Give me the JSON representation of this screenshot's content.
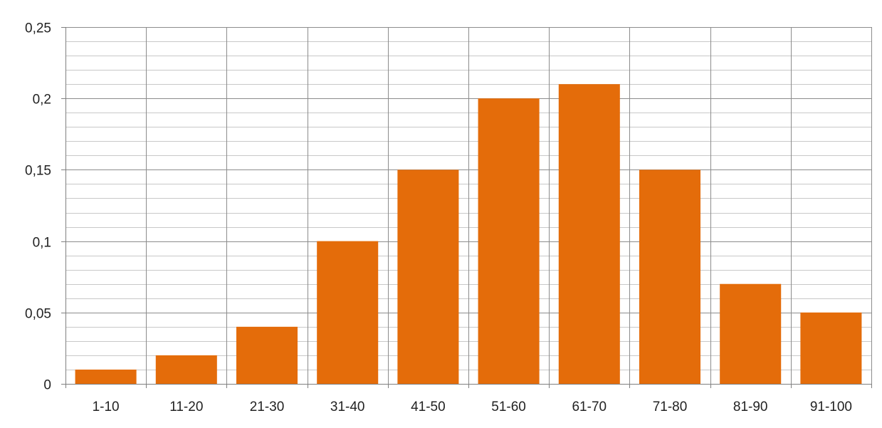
{
  "chart_data": {
    "type": "bar",
    "categories": [
      "1-10",
      "11-20",
      "21-30",
      "31-40",
      "41-50",
      "51-60",
      "61-70",
      "71-80",
      "81-90",
      "91-100"
    ],
    "values": [
      0.01,
      0.02,
      0.04,
      0.1,
      0.15,
      0.2,
      0.21,
      0.15,
      0.07,
      0.05
    ],
    "ylim": [
      0,
      0.25
    ],
    "yticks": [
      0,
      0.05,
      0.1,
      0.15,
      0.2,
      0.25
    ],
    "ytick_labels": [
      "0",
      "0,05",
      "0,1",
      "0,15",
      "0,2",
      "0,25"
    ],
    "minor_y_step": 0.01,
    "grid": true,
    "legend": "none",
    "colors": {
      "bar": "#e46c0a",
      "major_grid": "#8c8c8c",
      "minor_grid": "#c8c8c8",
      "axis": "#7f7f7f"
    }
  }
}
